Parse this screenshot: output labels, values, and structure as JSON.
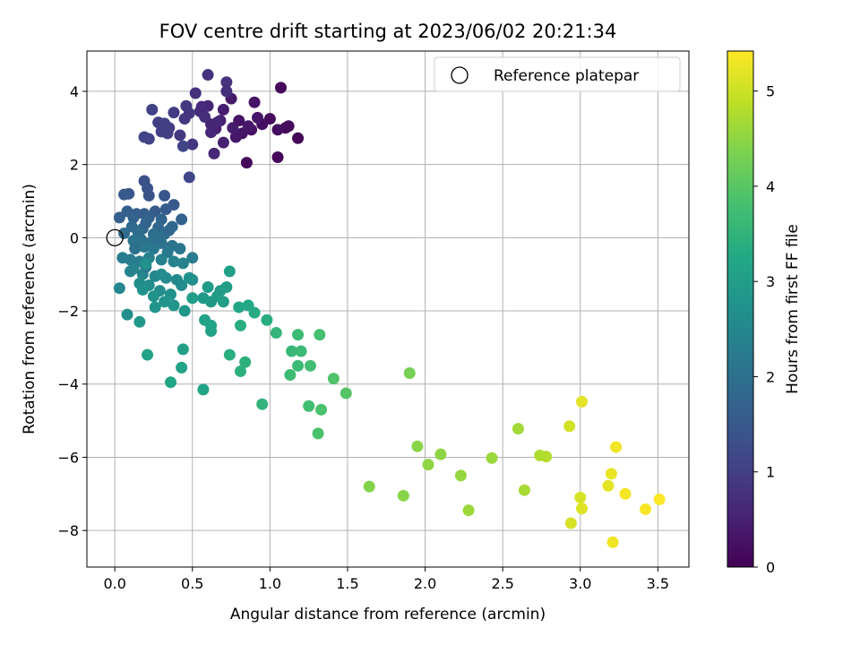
{
  "chart_data": {
    "type": "scatter",
    "title": "FOV centre drift starting at 2023/06/02 20:21:34",
    "xlabel": "Angular distance from reference (arcmin)",
    "ylabel": "Rotation from reference (arcmin)",
    "xlim": [
      -0.18,
      3.7
    ],
    "ylim": [
      -9.0,
      5.1
    ],
    "xticks": [
      0.0,
      0.5,
      1.0,
      1.5,
      2.0,
      2.5,
      3.0,
      3.5
    ],
    "xtick_labels": [
      "0.0",
      "0.5",
      "1.0",
      "1.5",
      "2.0",
      "2.5",
      "3.0",
      "3.5"
    ],
    "yticks": [
      -8,
      -6,
      -4,
      -2,
      0,
      2,
      4
    ],
    "ytick_labels": [
      "−8",
      "−6",
      "−4",
      "−2",
      "0",
      "2",
      "4"
    ],
    "grid": true,
    "legend": {
      "position": "top-right",
      "entries": [
        "Reference platepar"
      ]
    },
    "reference_point": {
      "x": 0.0,
      "y": 0.0
    },
    "colorbar": {
      "label": "Hours from first FF file",
      "colormap": "viridis",
      "range": [
        0,
        5.42
      ],
      "ticks": [
        0,
        1,
        2,
        3,
        4,
        5
      ],
      "tick_labels": [
        "0",
        "1",
        "2",
        "3",
        "4",
        "5"
      ]
    },
    "points": [
      [
        1.07,
        4.1,
        0.1
      ],
      [
        1.05,
        2.2,
        0.1
      ],
      [
        0.85,
        2.05,
        0.1
      ],
      [
        1.18,
        2.72,
        0.1
      ],
      [
        1.1,
        3.0,
        0.1
      ],
      [
        1.0,
        3.25,
        0.15
      ],
      [
        0.95,
        3.1,
        0.2
      ],
      [
        0.88,
        2.95,
        0.25
      ],
      [
        0.82,
        2.85,
        0.3
      ],
      [
        0.78,
        2.75,
        0.35
      ],
      [
        0.75,
        3.8,
        0.4
      ],
      [
        0.7,
        3.5,
        0.45
      ],
      [
        0.68,
        3.2,
        0.5
      ],
      [
        0.65,
        2.98,
        0.5
      ],
      [
        0.62,
        3.1,
        0.55
      ],
      [
        0.64,
        2.3,
        0.6
      ],
      [
        0.6,
        3.6,
        0.6
      ],
      [
        0.58,
        3.3,
        0.7
      ],
      [
        0.55,
        3.45,
        0.7
      ],
      [
        0.52,
        3.95,
        0.75
      ],
      [
        0.6,
        4.45,
        0.8
      ],
      [
        0.72,
        4.25,
        0.8
      ],
      [
        0.48,
        3.4,
        0.85
      ],
      [
        0.45,
        3.25,
        0.85
      ],
      [
        0.5,
        2.55,
        0.85
      ],
      [
        0.42,
        2.8,
        0.9
      ],
      [
        0.38,
        3.42,
        0.95
      ],
      [
        0.35,
        3.0,
        0.95
      ],
      [
        0.32,
        3.12,
        1.0
      ],
      [
        0.3,
        2.9,
        1.0
      ],
      [
        0.28,
        3.15,
        1.0
      ],
      [
        0.24,
        3.5,
        1.05
      ],
      [
        0.22,
        2.7,
        1.05
      ],
      [
        0.19,
        2.75,
        1.1
      ],
      [
        0.44,
        2.5,
        1.1
      ],
      [
        0.48,
        1.65,
        1.15
      ],
      [
        0.92,
        3.28,
        0.35
      ],
      [
        0.86,
        3.05,
        0.35
      ],
      [
        0.9,
        3.7,
        0.3
      ],
      [
        0.76,
        3.0,
        0.45
      ],
      [
        0.66,
        3.15,
        0.6
      ],
      [
        0.62,
        2.88,
        0.6
      ],
      [
        0.56,
        3.58,
        0.65
      ],
      [
        0.7,
        2.6,
        0.5
      ],
      [
        0.8,
        3.2,
        0.3
      ],
      [
        1.05,
        2.95,
        0.2
      ],
      [
        1.12,
        3.05,
        0.15
      ],
      [
        0.72,
        4.0,
        0.75
      ],
      [
        0.46,
        3.6,
        0.9
      ],
      [
        0.34,
        2.85,
        1.0
      ],
      [
        0.19,
        1.55,
        1.35
      ],
      [
        0.21,
        1.35,
        1.4
      ],
      [
        0.22,
        1.15,
        1.4
      ],
      [
        0.09,
        1.2,
        1.45
      ],
      [
        0.06,
        1.18,
        1.5
      ],
      [
        0.32,
        1.15,
        1.45
      ],
      [
        0.38,
        0.9,
        1.5
      ],
      [
        0.33,
        0.78,
        1.55
      ],
      [
        0.26,
        0.72,
        1.55
      ],
      [
        0.19,
        0.65,
        1.6
      ],
      [
        0.14,
        0.65,
        1.6
      ],
      [
        0.08,
        0.72,
        1.65
      ],
      [
        0.03,
        0.55,
        1.65
      ],
      [
        0.12,
        0.55,
        1.7
      ],
      [
        0.22,
        0.55,
        1.7
      ],
      [
        0.3,
        0.5,
        1.75
      ],
      [
        0.43,
        0.5,
        1.7
      ],
      [
        0.37,
        0.3,
        1.8
      ],
      [
        0.28,
        0.28,
        1.8
      ],
      [
        0.18,
        0.25,
        1.85
      ],
      [
        0.11,
        0.3,
        1.85
      ],
      [
        0.06,
        0.12,
        1.9
      ],
      [
        0.15,
        0.15,
        1.9
      ],
      [
        0.25,
        0.1,
        1.95
      ],
      [
        0.32,
        0.1,
        1.95
      ],
      [
        0.17,
        -0.05,
        2.0
      ],
      [
        0.24,
        -0.1,
        2.0
      ],
      [
        0.3,
        -0.15,
        2.05
      ],
      [
        0.37,
        -0.22,
        2.05
      ],
      [
        0.42,
        -0.3,
        2.1
      ],
      [
        0.12,
        -0.08,
        2.1
      ],
      [
        0.19,
        -0.25,
        2.15
      ],
      [
        0.25,
        -0.3,
        2.2
      ],
      [
        0.34,
        -0.4,
        2.2
      ],
      [
        0.05,
        -0.55,
        2.25
      ],
      [
        0.1,
        -0.6,
        2.25
      ],
      [
        0.16,
        -0.65,
        2.3
      ],
      [
        0.22,
        -0.55,
        2.35
      ],
      [
        0.3,
        -0.6,
        2.35
      ],
      [
        0.38,
        -0.65,
        2.4
      ],
      [
        0.44,
        -0.7,
        2.4
      ],
      [
        0.5,
        -0.55,
        2.25
      ],
      [
        0.1,
        -0.92,
        2.45
      ],
      [
        0.18,
        -1.0,
        2.45
      ],
      [
        0.26,
        -1.05,
        2.5
      ],
      [
        0.33,
        -1.1,
        2.55
      ],
      [
        0.4,
        -1.15,
        2.55
      ],
      [
        0.43,
        -1.3,
        2.6
      ],
      [
        0.5,
        -1.15,
        2.6
      ],
      [
        0.16,
        -1.25,
        2.6
      ],
      [
        0.22,
        -1.3,
        2.65
      ],
      [
        0.29,
        -1.45,
        2.65
      ],
      [
        0.36,
        -1.55,
        2.7
      ],
      [
        0.03,
        -1.38,
        2.5
      ],
      [
        0.18,
        -1.42,
        2.7
      ],
      [
        0.25,
        -1.6,
        2.75
      ],
      [
        0.32,
        -1.75,
        2.75
      ],
      [
        0.38,
        -1.85,
        2.8
      ],
      [
        0.26,
        -1.9,
        2.8
      ],
      [
        0.08,
        -2.1,
        2.65
      ],
      [
        0.16,
        -2.3,
        2.85
      ],
      [
        0.45,
        -2.0,
        2.85
      ],
      [
        0.57,
        -1.65,
        2.9
      ],
      [
        0.62,
        -1.75,
        2.9
      ],
      [
        0.66,
        -1.6,
        2.95
      ],
      [
        0.68,
        -1.45,
        2.95
      ],
      [
        0.6,
        -1.35,
        2.95
      ],
      [
        0.7,
        -1.75,
        3.0
      ],
      [
        0.72,
        -1.35,
        3.0
      ],
      [
        0.5,
        -1.65,
        3.0
      ],
      [
        0.13,
        -0.3,
        2.0
      ],
      [
        0.2,
        -0.8,
        2.2
      ],
      [
        0.2,
        -0.72,
        2.7
      ],
      [
        0.74,
        -0.92,
        3.05
      ],
      [
        0.58,
        -2.25,
        3.1
      ],
      [
        0.62,
        -2.55,
        3.1
      ],
      [
        0.44,
        -3.05,
        3.05
      ],
      [
        0.43,
        -3.55,
        3.1
      ],
      [
        0.36,
        -3.95,
        3.15
      ],
      [
        0.21,
        -3.2,
        3.1
      ],
      [
        0.57,
        -4.15,
        3.15
      ],
      [
        0.62,
        -2.4,
        3.15
      ],
      [
        0.8,
        -1.9,
        3.2
      ],
      [
        0.86,
        -1.85,
        3.25
      ],
      [
        0.9,
        -2.05,
        3.3
      ],
      [
        0.98,
        -2.25,
        3.35
      ],
      [
        0.81,
        -2.4,
        3.4
      ],
      [
        0.74,
        -3.2,
        3.4
      ],
      [
        0.81,
        -3.65,
        3.45
      ],
      [
        0.84,
        -3.4,
        3.45
      ],
      [
        0.95,
        -4.55,
        3.5
      ],
      [
        1.04,
        -2.6,
        3.55
      ],
      [
        1.14,
        -3.1,
        3.6
      ],
      [
        1.18,
        -3.5,
        3.65
      ],
      [
        1.2,
        -3.1,
        3.65
      ],
      [
        1.18,
        -2.65,
        3.7
      ],
      [
        1.13,
        -3.75,
        3.7
      ],
      [
        1.26,
        -3.5,
        3.75
      ],
      [
        1.25,
        -4.6,
        3.75
      ],
      [
        1.32,
        -2.65,
        3.8
      ],
      [
        1.33,
        -4.7,
        3.85
      ],
      [
        1.31,
        -5.35,
        3.85
      ],
      [
        1.41,
        -3.85,
        3.9
      ],
      [
        1.49,
        -4.25,
        3.95
      ],
      [
        0.3,
        -1.0,
        2.6
      ],
      [
        0.48,
        -1.1,
        2.7
      ],
      [
        0.12,
        -0.85,
        2.4
      ],
      [
        0.35,
        0.2,
        1.8
      ],
      [
        0.27,
        -0.02,
        1.95
      ],
      [
        0.2,
        0.4,
        1.75
      ],
      [
        1.9,
        -3.7,
        4.3
      ],
      [
        1.64,
        -6.8,
        4.4
      ],
      [
        1.86,
        -7.05,
        4.45
      ],
      [
        1.95,
        -5.7,
        4.45
      ],
      [
        2.02,
        -6.2,
        4.5
      ],
      [
        2.1,
        -5.92,
        4.5
      ],
      [
        2.23,
        -6.5,
        4.55
      ],
      [
        2.28,
        -7.45,
        4.6
      ],
      [
        2.43,
        -6.02,
        4.6
      ],
      [
        2.6,
        -5.22,
        4.65
      ],
      [
        2.64,
        -6.9,
        4.7
      ],
      [
        2.74,
        -5.95,
        4.75
      ],
      [
        2.78,
        -5.98,
        4.8
      ],
      [
        2.93,
        -5.15,
        5.05
      ],
      [
        2.94,
        -7.8,
        5.1
      ],
      [
        3.0,
        -7.1,
        5.1
      ],
      [
        3.01,
        -7.4,
        5.15
      ],
      [
        3.01,
        -4.48,
        5.2
      ],
      [
        3.18,
        -6.78,
        5.2
      ],
      [
        3.2,
        -6.45,
        5.25
      ],
      [
        3.21,
        -8.32,
        5.3
      ],
      [
        3.23,
        -5.72,
        5.3
      ],
      [
        3.29,
        -7.0,
        5.35
      ],
      [
        3.42,
        -7.42,
        5.38
      ],
      [
        3.51,
        -7.15,
        5.4
      ]
    ]
  }
}
